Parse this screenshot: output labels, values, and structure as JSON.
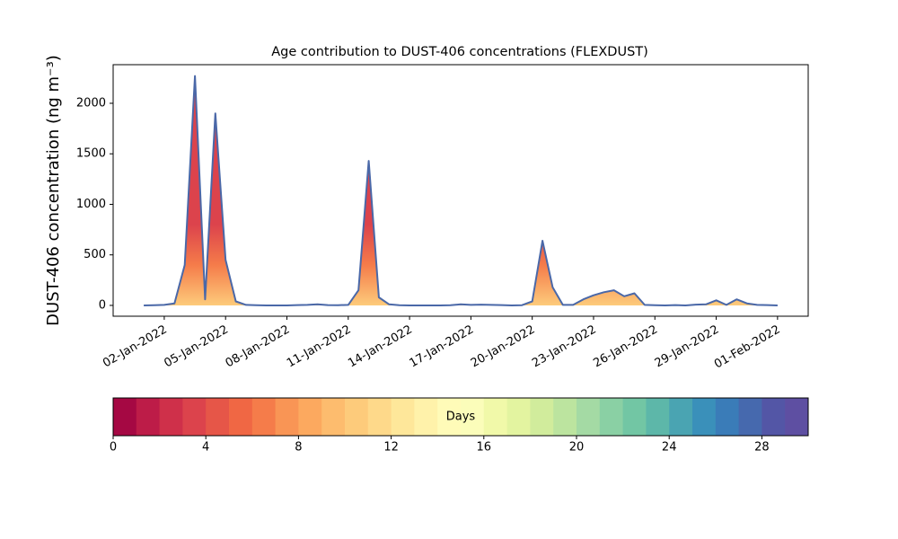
{
  "chart_data": {
    "type": "area",
    "title": "Age contribution to DUST-406 concentrations (FLEXDUST)",
    "ylabel": "DUST-406 concentration (ng m⁻³)",
    "color": "#4a68a8",
    "x": [
      "2022-01-01T00:00",
      "2022-01-01T12:00",
      "2022-01-02T00:00",
      "2022-01-02T12:00",
      "2022-01-03T00:00",
      "2022-01-03T12:00",
      "2022-01-04T00:00",
      "2022-01-04T12:00",
      "2022-01-05T00:00",
      "2022-01-05T12:00",
      "2022-01-06T00:00",
      "2022-01-06T12:00",
      "2022-01-07T00:00",
      "2022-01-07T12:00",
      "2022-01-08T00:00",
      "2022-01-08T12:00",
      "2022-01-09T00:00",
      "2022-01-09T12:00",
      "2022-01-10T00:00",
      "2022-01-10T12:00",
      "2022-01-11T00:00",
      "2022-01-11T12:00",
      "2022-01-12T00:00",
      "2022-01-12T12:00",
      "2022-01-13T00:00",
      "2022-01-13T12:00",
      "2022-01-14T00:00",
      "2022-01-14T12:00",
      "2022-01-15T00:00",
      "2022-01-15T12:00",
      "2022-01-16T00:00",
      "2022-01-16T12:00",
      "2022-01-17T00:00",
      "2022-01-17T12:00",
      "2022-01-18T00:00",
      "2022-01-18T12:00",
      "2022-01-19T00:00",
      "2022-01-19T12:00",
      "2022-01-20T00:00",
      "2022-01-20T12:00",
      "2022-01-21T00:00",
      "2022-01-21T12:00",
      "2022-01-22T00:00",
      "2022-01-22T12:00",
      "2022-01-23T00:00",
      "2022-01-23T12:00",
      "2022-01-24T00:00",
      "2022-01-24T12:00",
      "2022-01-25T00:00",
      "2022-01-25T12:00",
      "2022-01-26T00:00",
      "2022-01-26T12:00",
      "2022-01-27T00:00",
      "2022-01-27T12:00",
      "2022-01-28T00:00",
      "2022-01-28T12:00",
      "2022-01-29T00:00",
      "2022-01-29T12:00",
      "2022-01-30T00:00",
      "2022-01-30T12:00",
      "2022-01-31T00:00",
      "2022-01-31T12:00",
      "2022-02-01T00:00"
    ],
    "values": [
      0,
      2,
      5,
      20,
      400,
      2270,
      60,
      1900,
      450,
      40,
      5,
      2,
      0,
      0,
      0,
      3,
      5,
      10,
      3,
      2,
      5,
      150,
      1430,
      80,
      10,
      2,
      0,
      0,
      0,
      0,
      2,
      10,
      5,
      8,
      5,
      3,
      0,
      2,
      40,
      640,
      180,
      5,
      5,
      60,
      100,
      130,
      150,
      90,
      120,
      5,
      2,
      0,
      3,
      0,
      8,
      10,
      50,
      5,
      60,
      20,
      5,
      3,
      0
    ],
    "xlim": [
      "2021-12-30T12:00",
      "2022-02-02T12:00"
    ],
    "xticks": [
      {
        "value": "2022-01-02T00:00",
        "label": "02-Jan-2022"
      },
      {
        "value": "2022-01-05T00:00",
        "label": "05-Jan-2022"
      },
      {
        "value": "2022-01-08T00:00",
        "label": "08-Jan-2022"
      },
      {
        "value": "2022-01-11T00:00",
        "label": "11-Jan-2022"
      },
      {
        "value": "2022-01-14T00:00",
        "label": "14-Jan-2022"
      },
      {
        "value": "2022-01-17T00:00",
        "label": "17-Jan-2022"
      },
      {
        "value": "2022-01-20T00:00",
        "label": "20-Jan-2022"
      },
      {
        "value": "2022-01-23T00:00",
        "label": "23-Jan-2022"
      },
      {
        "value": "2022-01-26T00:00",
        "label": "26-Jan-2022"
      },
      {
        "value": "2022-01-29T00:00",
        "label": "29-Jan-2022"
      },
      {
        "value": "2022-02-01T00:00",
        "label": "01-Feb-2022"
      }
    ],
    "ylim": [
      -107,
      2382
    ],
    "yticks": [
      0,
      500,
      1000,
      1500,
      2000
    ],
    "colorbar": {
      "label": "Days",
      "lim": [
        0,
        30
      ],
      "ticks": [
        0,
        4,
        8,
        12,
        16,
        20,
        24,
        28
      ],
      "colors": [
        "#a50843",
        "#bd1c48",
        "#cf304a",
        "#dc434c",
        "#e65648",
        "#f06744",
        "#f57c4a",
        "#f99555",
        "#fca95f",
        "#fdbc6e",
        "#fdcb7b",
        "#fed98a",
        "#fee79a",
        "#fff2aa",
        "#fffbb8",
        "#fbfdba",
        "#f1f9a9",
        "#e3f4a0",
        "#d1ec9c",
        "#bce49f",
        "#a4daa4",
        "#8ad0a4",
        "#72c6a4",
        "#5db7a9",
        "#4aa4b2",
        "#3a90ba",
        "#3a7cb8",
        "#4669ae",
        "#5356a6",
        "#5e4fa2"
      ]
    }
  }
}
